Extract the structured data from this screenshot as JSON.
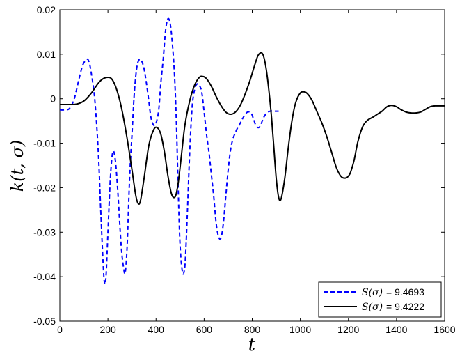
{
  "chart_data": {
    "type": "line",
    "xlabel": "t",
    "ylabel": "k(t, σ)",
    "xlim": [
      0,
      1600
    ],
    "ylim": [
      -0.05,
      0.02
    ],
    "xticks": [
      0,
      200,
      400,
      600,
      800,
      1000,
      1200,
      1400,
      1600
    ],
    "yticks": [
      -0.05,
      -0.04,
      -0.03,
      -0.02,
      -0.01,
      0,
      0.01,
      0.02
    ],
    "xtick_labels": [
      "0",
      "200",
      "400",
      "600",
      "800",
      "1000",
      "1200",
      "1400",
      "1600"
    ],
    "ytick_labels": [
      "-0.05",
      "-0.04",
      "-0.03",
      "-0.02",
      "-0.01",
      "0",
      "0.01",
      "0.02"
    ],
    "grid": false,
    "legend_position": "bottom-right",
    "series": [
      {
        "name": "S(σ)= 9.4693",
        "legend_math": "S(σ)",
        "legend_value": "= 9.4693",
        "color": "#0000ff",
        "style": "dashed",
        "x": [
          0,
          20,
          40,
          60,
          80,
          95,
          110,
          120,
          130,
          145,
          160,
          170,
          180,
          186,
          192,
          200,
          210,
          220,
          230,
          240,
          255,
          265,
          272,
          280,
          290,
          300,
          310,
          320,
          330,
          340,
          350,
          360,
          370,
          380,
          395,
          410,
          420,
          430,
          440,
          450,
          460,
          470,
          478,
          485,
          492,
          500,
          510,
          518,
          523,
          530,
          540,
          550,
          560,
          570,
          580,
          590,
          600,
          610,
          620,
          630,
          640,
          650,
          660,
          670,
          680,
          690,
          700,
          710,
          720,
          735,
          750,
          765,
          780,
          795,
          805,
          815,
          825,
          835,
          845,
          860,
          875,
          890,
          900,
          910
        ],
        "y": [
          -0.0025,
          -0.0025,
          -0.0022,
          0.0,
          0.0045,
          0.0075,
          0.0088,
          0.0085,
          0.006,
          0.0,
          -0.012,
          -0.025,
          -0.037,
          -0.0415,
          -0.04,
          -0.03,
          -0.018,
          -0.012,
          -0.0135,
          -0.02,
          -0.033,
          -0.038,
          -0.039,
          -0.033,
          -0.018,
          -0.008,
          0.0015,
          0.007,
          0.0088,
          0.0085,
          0.0068,
          0.0035,
          -0.0005,
          -0.0045,
          -0.006,
          -0.003,
          0.0035,
          0.009,
          0.0155,
          0.018,
          0.0165,
          0.011,
          0.004,
          -0.006,
          -0.02,
          -0.033,
          -0.039,
          -0.0385,
          -0.035,
          -0.026,
          -0.012,
          -0.002,
          0.002,
          0.0033,
          0.003,
          0.0015,
          -0.003,
          -0.008,
          -0.012,
          -0.017,
          -0.022,
          -0.028,
          -0.031,
          -0.0313,
          -0.028,
          -0.022,
          -0.016,
          -0.0115,
          -0.009,
          -0.007,
          -0.0055,
          -0.004,
          -0.003,
          -0.0032,
          -0.0045,
          -0.006,
          -0.0065,
          -0.006,
          -0.0045,
          -0.0032,
          -0.0028,
          -0.0028,
          -0.0028,
          -0.0028
        ]
      },
      {
        "name": "S(σ)= 9.4222",
        "legend_math": "S(σ)",
        "legend_value": "= 9.4222",
        "color": "#000000",
        "style": "solid",
        "x": [
          0,
          40,
          70,
          100,
          130,
          160,
          180,
          200,
          215,
          230,
          245,
          260,
          280,
          300,
          315,
          325,
          335,
          350,
          370,
          390,
          405,
          420,
          435,
          450,
          465,
          480,
          492,
          505,
          520,
          540,
          560,
          580,
          595,
          610,
          630,
          650,
          670,
          690,
          710,
          730,
          750,
          770,
          790,
          810,
          825,
          840,
          850,
          860,
          870,
          880,
          890,
          900,
          910,
          920,
          935,
          950,
          965,
          980,
          1000,
          1020,
          1035,
          1050,
          1070,
          1090,
          1110,
          1130,
          1150,
          1170,
          1190,
          1205,
          1215,
          1225,
          1240,
          1260,
          1280,
          1300,
          1320,
          1340,
          1360,
          1380,
          1400,
          1420,
          1440,
          1460,
          1480,
          1500,
          1520,
          1540,
          1560,
          1580,
          1600
        ],
        "y": [
          -0.0013,
          -0.0013,
          -0.0012,
          -0.0005,
          0.0012,
          0.0035,
          0.0045,
          0.0048,
          0.0045,
          0.003,
          0.0005,
          -0.003,
          -0.009,
          -0.016,
          -0.0215,
          -0.0235,
          -0.023,
          -0.018,
          -0.0105,
          -0.007,
          -0.0065,
          -0.008,
          -0.012,
          -0.0175,
          -0.0215,
          -0.022,
          -0.019,
          -0.013,
          -0.006,
          -0.0005,
          0.003,
          0.0048,
          0.005,
          0.0045,
          0.0028,
          0.0005,
          -0.0015,
          -0.003,
          -0.0035,
          -0.003,
          -0.0015,
          0.001,
          0.004,
          0.0075,
          0.0098,
          0.0103,
          0.009,
          0.006,
          0.0015,
          -0.004,
          -0.011,
          -0.018,
          -0.0222,
          -0.0225,
          -0.018,
          -0.011,
          -0.005,
          -0.001,
          0.0013,
          0.0015,
          0.0008,
          -0.0005,
          -0.003,
          -0.0055,
          -0.0085,
          -0.012,
          -0.0155,
          -0.0175,
          -0.0178,
          -0.017,
          -0.0155,
          -0.0135,
          -0.0095,
          -0.0062,
          -0.0048,
          -0.0042,
          -0.0035,
          -0.0028,
          -0.0018,
          -0.0015,
          -0.0018,
          -0.0025,
          -0.003,
          -0.0032,
          -0.0032,
          -0.003,
          -0.0024,
          -0.0018,
          -0.0016,
          -0.0016,
          -0.0016
        ]
      }
    ]
  }
}
